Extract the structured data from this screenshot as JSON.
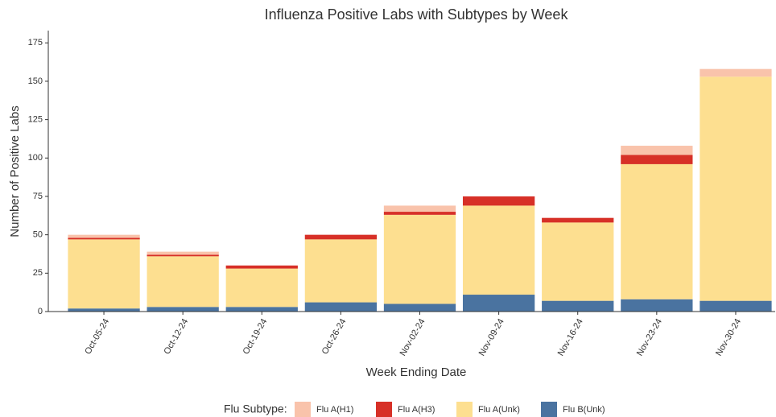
{
  "chart_data": {
    "type": "stacked_bar",
    "title": "Influenza Positive Labs with Subtypes by Week",
    "x_label": "Week Ending Date",
    "y_label": "Number of Positive Labs",
    "legend_title": "Flu Subtype:",
    "categories": [
      "Oct-05-24",
      "Oct-12-24",
      "Oct-19-24",
      "Oct-26-24",
      "Nov-02-24",
      "Nov-09-24",
      "Nov-16-24",
      "Nov-23-24",
      "Nov-30-24"
    ],
    "series": [
      {
        "name": "Flu A(H1)",
        "color": "#f9c3ab",
        "values": [
          2,
          2,
          0,
          0,
          4,
          0,
          0,
          6,
          5
        ]
      },
      {
        "name": "Flu A(H3)",
        "color": "#d73027",
        "values": [
          1,
          1,
          2,
          3,
          2,
          6,
          3,
          6,
          0
        ]
      },
      {
        "name": "Flu A(Unk)",
        "color": "#fddf90",
        "values": [
          45,
          33,
          25,
          41,
          58,
          58,
          51,
          88,
          146
        ]
      },
      {
        "name": "Flu B(Unk)",
        "color": "#4a73a0",
        "values": [
          2,
          3,
          3,
          6,
          5,
          11,
          7,
          8,
          7
        ]
      }
    ],
    "ylim": [
      0,
      183
    ],
    "yticks": [
      0,
      25,
      50,
      75,
      100,
      125,
      150,
      175
    ],
    "legend_position": "bottom"
  }
}
